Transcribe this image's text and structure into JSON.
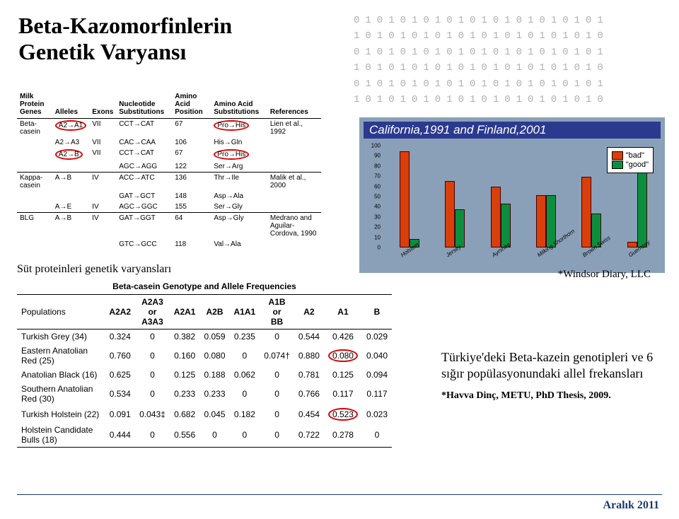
{
  "title_l1": "Beta-Kazomorfinlerin",
  "title_l2": "Genetik Varyansı",
  "caption1": "Süt proteinleri genetik varyansları",
  "caption2": "*Windsor Diary, LLC",
  "chart": {
    "title": "California,1991 and Finland,2001",
    "legend": {
      "bad": "\"bad\"",
      "good": "\"good\""
    },
    "colors": {
      "bad": "#d93f0b",
      "good": "#0a8f3f",
      "panel": "#8aa0b8",
      "title_bg": "#2b3a8f"
    },
    "ymax": 100,
    "yticks": [
      0,
      10,
      20,
      30,
      40,
      50,
      60,
      70,
      80,
      90,
      100
    ],
    "categories": [
      "Holstein",
      "Jersey",
      "Ayrshire",
      "Milking Shorthorn",
      "Brown Swiss",
      "Guernsey"
    ],
    "series": {
      "bad": [
        93,
        64,
        58,
        50,
        68,
        4
      ],
      "good": [
        7,
        36,
        42,
        50,
        32,
        96
      ]
    }
  },
  "sub_tbl": {
    "headers": [
      "Milk Protein Genes",
      "Alleles",
      "Exons",
      "Nucleotide Substitutions",
      "Amino Acid Position",
      "Amino Acid Substitutions",
      "References"
    ],
    "rows": [
      {
        "gene": "Beta-casein",
        "alleles": "A2→A1",
        "exons": "VII",
        "nuc": "CCT→CAT",
        "pos": "67",
        "aa": "Pro→His",
        "ref": "Lien et al., 1992",
        "circle_allele": true,
        "circle_aa": true
      },
      {
        "gene": "",
        "alleles": "A2→A3",
        "exons": "VII",
        "nuc": "CAC→CAA",
        "pos": "106",
        "aa": "His→Gln",
        "ref": ""
      },
      {
        "gene": "",
        "alleles": "A2→B",
        "exons": "VII",
        "nuc": "CCT→CAT",
        "pos": "67",
        "aa": "Pro→His",
        "ref": "",
        "circle_allele": true,
        "circle_aa": true
      },
      {
        "gene": "",
        "alleles": "",
        "exons": "",
        "nuc": "AGC→AGG",
        "pos": "122",
        "aa": "Ser→Arg",
        "ref": ""
      },
      {
        "gene": "Kappa-casein",
        "alleles": "A→B",
        "exons": "IV",
        "nuc": "ACC→ATC",
        "pos": "136",
        "aa": "Thr→Ile",
        "ref": "Malik et al., 2000",
        "sep": true
      },
      {
        "gene": "",
        "alleles": "",
        "exons": "",
        "nuc": "GAT→GCT",
        "pos": "148",
        "aa": "Asp→Ala",
        "ref": ""
      },
      {
        "gene": "",
        "alleles": "A→E",
        "exons": "IV",
        "nuc": "AGC→GGC",
        "pos": "155",
        "aa": "Ser→Gly",
        "ref": ""
      },
      {
        "gene": "BLG",
        "alleles": "A→B",
        "exons": "IV",
        "nuc": "GAT→GGT",
        "pos": "64",
        "aa": "Asp→Gly",
        "ref": "Medrano and Aguilar-Cordova, 1990",
        "sep": true
      },
      {
        "gene": "",
        "alleles": "",
        "exons": "",
        "nuc": "GTC→GCC",
        "pos": "118",
        "aa": "Val→Ala",
        "ref": ""
      }
    ]
  },
  "freq_tbl": {
    "caption": "Beta-casein Genotype and Allele Frequencies",
    "header1": "Populations",
    "cols": [
      "A2A2",
      "A2A3 or A3A3",
      "A2A1",
      "A2B",
      "A1A1",
      "A1B or BB",
      "A2",
      "A1",
      "B"
    ],
    "rows": [
      {
        "pop": "Turkish Grey (34)",
        "v": [
          "0.324",
          "0",
          "0.382",
          "0.059",
          "0.235",
          "0",
          "0.544",
          "0.426",
          "0.029"
        ]
      },
      {
        "pop": "Eastern Anatolian Red (25)",
        "v": [
          "0.760",
          "0",
          "0.160",
          "0.080",
          "0",
          "0.074†",
          "0.880",
          "0.080",
          "0.040"
        ],
        "circle": 7
      },
      {
        "pop": "Anatolian Black (16)",
        "v": [
          "0.625",
          "0",
          "0.125",
          "0.188",
          "0.062",
          "0",
          "0.781",
          "0.125",
          "0.094"
        ]
      },
      {
        "pop": "Southern Anatolian Red (30)",
        "v": [
          "0.534",
          "0",
          "0.233",
          "0.233",
          "0",
          "0",
          "0.766",
          "0.117",
          "0.117"
        ]
      },
      {
        "pop": "Turkish Holstein (22)",
        "v": [
          "0.091",
          "0.043‡",
          "0.682",
          "0.045",
          "0.182",
          "0",
          "0.454",
          "0.523",
          "0.023"
        ],
        "circle": 7
      },
      {
        "pop": "Holstein Candidate Bulls (18)",
        "v": [
          "0.444",
          "0",
          "0.556",
          "0",
          "0",
          "0",
          "0.722",
          "0.278",
          "0"
        ]
      }
    ]
  },
  "side": {
    "l1": "Türkiye'deki Beta-kazein genotipleri",
    "l2": "ve 6 sığır popülasyonundaki allel",
    "l3": "frekansları",
    "cite": "*Havva Dinç, METU, PhD Thesis, 2009."
  },
  "footer": "Aralık 2011"
}
